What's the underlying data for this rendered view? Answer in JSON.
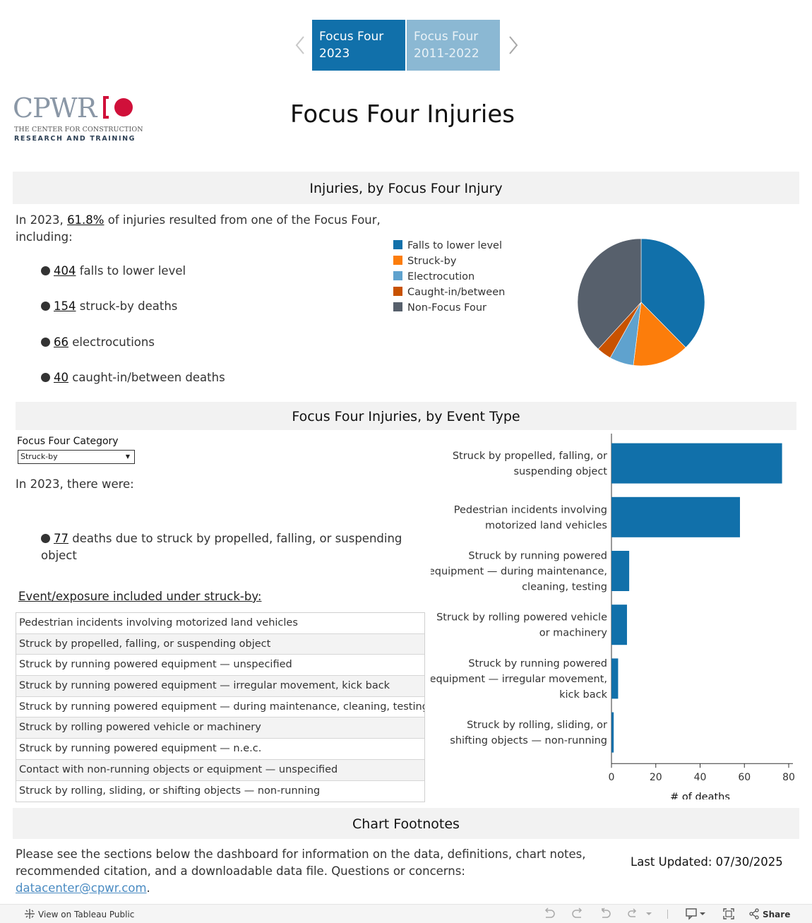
{
  "tabs": [
    {
      "line1": "Focus Four",
      "line2": "2023",
      "active": true
    },
    {
      "line1": "Focus Four",
      "line2": "2011-2022",
      "active": false
    }
  ],
  "logo": {
    "word": "CPWR",
    "line1": "THE CENTER FOR CONSTRUCTION",
    "line2": "RESEARCH AND TRAINING"
  },
  "page_title": "Focus Four Injuries",
  "section1": {
    "title": "Injuries, by Focus Four Injury",
    "intro_prefix": "In 2023, ",
    "intro_pct": "61.8%",
    "intro_suffix": " of injuries resulted from one of the Focus Four, including:",
    "bullets": [
      {
        "num": "404",
        "text": " falls to lower level"
      },
      {
        "num": "154",
        "text": " struck-by deaths"
      },
      {
        "num": "66",
        "text": " electrocutions"
      },
      {
        "num": "40",
        "text": " caught-in/between deaths"
      }
    ]
  },
  "section2": {
    "title": "Focus Four Injuries, by Event Type",
    "filter_label": "Focus Four Category",
    "filter_value": "Struck-by",
    "intro": "In 2023, there were:",
    "bullet_num": "77",
    "bullet_text": " deaths due to struck by propelled, falling, or suspending object",
    "event_heading": "Event/exposure included under struck-by:",
    "events": [
      "Pedestrian incidents involving motorized land vehicles",
      "Struck by propelled, falling, or suspending object",
      "Struck by running powered equipment — unspecified",
      "Struck by running powered equipment — irregular movement, kick back",
      "Struck by running powered equipment — during maintenance, cleaning, testing",
      "Struck by rolling powered vehicle or machinery",
      "Struck by running powered equipment — n.e.c.",
      "Contact with non-running objects or equipment — unspecified",
      "Struck by rolling, sliding, or shifting objects — non-running"
    ]
  },
  "footnotes": {
    "title": "Chart Footnotes",
    "text": "Please see the sections below the dashboard for information on the data, definitions, chart notes, recommended citation, and a downloadable data file. Questions or concerns: ",
    "email": "datacenter@cpwr.com",
    "text_end": ".",
    "last_updated": "Last Updated: 07/30/2025"
  },
  "toolbar": {
    "view_label": "View on Tableau Public",
    "share_label": "Share"
  },
  "colors": {
    "tab_active": "#1170aa",
    "tab_inactive": "#8bb8d3",
    "bar": "#1170aa",
    "logo_red": "#d0103a"
  },
  "chart_data": [
    {
      "type": "pie",
      "title": "",
      "legend_position": "left",
      "series": [
        {
          "name": "Falls to lower level",
          "value": 404,
          "color": "#1170aa"
        },
        {
          "name": "Struck-by",
          "value": 154,
          "color": "#fc7d0b"
        },
        {
          "name": "Electrocution",
          "value": 66,
          "color": "#5fa2ce"
        },
        {
          "name": "Caught-in/between",
          "value": 40,
          "color": "#c85200"
        },
        {
          "name": "Non-Focus Four",
          "value": 410,
          "color": "#57606c"
        }
      ]
    },
    {
      "type": "bar",
      "orientation": "horizontal",
      "title": "",
      "xlabel": "# of deaths",
      "ylabel": "",
      "xlim": [
        0,
        80
      ],
      "xticks": [
        0,
        20,
        40,
        60,
        80
      ],
      "categories": [
        [
          "Struck by propelled, falling, or",
          "suspending object"
        ],
        [
          "Pedestrian incidents involving",
          "motorized land vehicles"
        ],
        [
          "Struck by running powered",
          "equipment — during maintenance,",
          "cleaning, testing"
        ],
        [
          "Struck by rolling powered vehicle",
          "or machinery"
        ],
        [
          "Struck by running powered",
          "equipment — irregular movement,",
          "kick back"
        ],
        [
          "Struck by rolling, sliding, or",
          "shifting objects — non-running"
        ]
      ],
      "values": [
        77,
        58,
        8,
        7,
        3,
        1
      ],
      "grid": false
    }
  ]
}
